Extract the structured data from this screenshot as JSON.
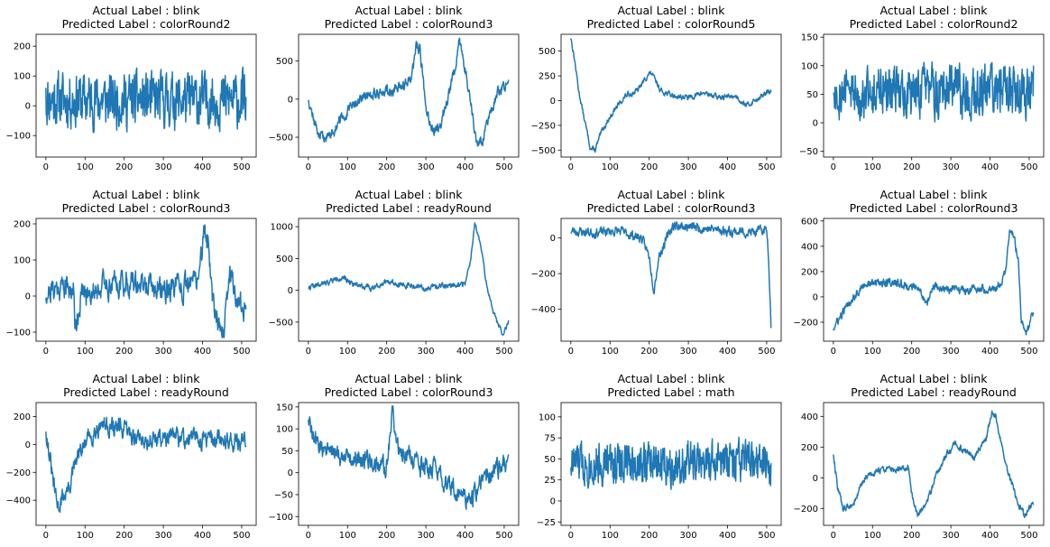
{
  "colors": {
    "series": "#1f77b4"
  },
  "chart_data": [
    {
      "type": "line",
      "title": "Actual Label : blink",
      "subtitle": "Predicted Label : colorRound2",
      "xlim": [
        -25,
        537
      ],
      "ylim": [
        -172,
        240
      ],
      "xticks": [
        0,
        100,
        200,
        300,
        400,
        500
      ],
      "yticks": [
        -100,
        0,
        100,
        200
      ],
      "shape": "noisy",
      "n": 512,
      "center": 20,
      "amp": 100,
      "seed": 11,
      "cmin": -145,
      "cmax": 235,
      "anchors": [
        [
          0,
          60
        ],
        [
          512,
          30
        ]
      ]
    },
    {
      "type": "line",
      "title": "Actual Label : blink",
      "subtitle": "Predicted Label : colorRound3",
      "xlim": [
        -25,
        537
      ],
      "ylim": [
        -760,
        850
      ],
      "xticks": [
        0,
        100,
        200,
        300,
        400,
        500
      ],
      "yticks": [
        -500,
        0,
        500
      ],
      "shape": "anchors",
      "n": 512,
      "noise": 60,
      "seed": 12,
      "cmin": -660,
      "cmax": 800,
      "anchors": [
        [
          0,
          20
        ],
        [
          15,
          -300
        ],
        [
          30,
          -500
        ],
        [
          50,
          -500
        ],
        [
          80,
          -300
        ],
        [
          120,
          -50
        ],
        [
          160,
          80
        ],
        [
          200,
          100
        ],
        [
          240,
          150
        ],
        [
          265,
          300
        ],
        [
          275,
          700
        ],
        [
          285,
          650
        ],
        [
          300,
          -100
        ],
        [
          320,
          -450
        ],
        [
          340,
          -300
        ],
        [
          370,
          300
        ],
        [
          385,
          780
        ],
        [
          400,
          400
        ],
        [
          420,
          -200
        ],
        [
          430,
          -600
        ],
        [
          445,
          -550
        ],
        [
          470,
          -100
        ],
        [
          490,
          150
        ],
        [
          512,
          200
        ]
      ]
    },
    {
      "type": "line",
      "title": "Actual Label : blink",
      "subtitle": "Predicted Label : colorRound5",
      "xlim": [
        -25,
        537
      ],
      "ylim": [
        -570,
        670
      ],
      "xticks": [
        0,
        100,
        200,
        300,
        400,
        500
      ],
      "yticks": [
        -500,
        -250,
        0,
        250,
        500
      ],
      "shape": "anchors",
      "n": 512,
      "noise": 22,
      "seed": 13,
      "cmin": -520,
      "cmax": 640,
      "anchors": [
        [
          0,
          640
        ],
        [
          10,
          400
        ],
        [
          20,
          100
        ],
        [
          35,
          -200
        ],
        [
          50,
          -480
        ],
        [
          62,
          -500
        ],
        [
          80,
          -300
        ],
        [
          110,
          -100
        ],
        [
          140,
          50
        ],
        [
          170,
          100
        ],
        [
          195,
          250
        ],
        [
          205,
          280
        ],
        [
          230,
          100
        ],
        [
          260,
          50
        ],
        [
          300,
          30
        ],
        [
          340,
          80
        ],
        [
          380,
          30
        ],
        [
          420,
          50
        ],
        [
          450,
          -50
        ],
        [
          480,
          30
        ],
        [
          512,
          100
        ]
      ]
    },
    {
      "type": "line",
      "title": "Actual Label : blink",
      "subtitle": "Predicted Label : colorRound2",
      "xlim": [
        -25,
        537
      ],
      "ylim": [
        -60,
        155
      ],
      "xticks": [
        0,
        100,
        200,
        300,
        400,
        500
      ],
      "yticks": [
        -50,
        0,
        50,
        100,
        150
      ],
      "shape": "noisy",
      "n": 512,
      "center": 55,
      "amp": 50,
      "seed": 14,
      "cmin": -50,
      "cmax": 148,
      "anchors": [
        [
          0,
          50
        ],
        [
          512,
          100
        ]
      ]
    },
    {
      "type": "line",
      "title": "Actual Label : blink",
      "subtitle": "Predicted Label : colorRound3",
      "xlim": [
        -25,
        537
      ],
      "ylim": [
        -125,
        215
      ],
      "xticks": [
        0,
        100,
        200,
        300,
        400,
        500
      ],
      "yticks": [
        -100,
        0,
        100,
        200
      ],
      "shape": "anchors",
      "n": 512,
      "noise": 28,
      "seed": 21,
      "cmin": -115,
      "cmax": 200,
      "anchors": [
        [
          0,
          10
        ],
        [
          40,
          30
        ],
        [
          70,
          20
        ],
        [
          75,
          -85
        ],
        [
          90,
          0
        ],
        [
          140,
          30
        ],
        [
          200,
          40
        ],
        [
          280,
          20
        ],
        [
          360,
          20
        ],
        [
          390,
          60
        ],
        [
          405,
          180
        ],
        [
          415,
          150
        ],
        [
          425,
          0
        ],
        [
          440,
          -60
        ],
        [
          455,
          -110
        ],
        [
          470,
          80
        ],
        [
          485,
          0
        ],
        [
          512,
          -50
        ]
      ]
    },
    {
      "type": "line",
      "title": "Actual Label : blink",
      "subtitle": "Predicted Label : readyRound",
      "xlim": [
        -25,
        537
      ],
      "ylim": [
        -800,
        1130
      ],
      "xticks": [
        0,
        100,
        200,
        300,
        400,
        500
      ],
      "yticks": [
        -500,
        0,
        500,
        1000
      ],
      "shape": "anchors",
      "n": 512,
      "noise": 35,
      "seed": 22,
      "cmin": -700,
      "cmax": 1060,
      "anchors": [
        [
          0,
          50
        ],
        [
          30,
          80
        ],
        [
          80,
          200
        ],
        [
          120,
          100
        ],
        [
          160,
          30
        ],
        [
          200,
          150
        ],
        [
          250,
          80
        ],
        [
          300,
          30
        ],
        [
          350,
          80
        ],
        [
          400,
          100
        ],
        [
          415,
          500
        ],
        [
          425,
          1050
        ],
        [
          440,
          700
        ],
        [
          455,
          100
        ],
        [
          470,
          -300
        ],
        [
          485,
          -550
        ],
        [
          498,
          -700
        ],
        [
          512,
          -450
        ]
      ]
    },
    {
      "type": "line",
      "title": "Actual Label : blink",
      "subtitle": "Predicted Label : colorRound3",
      "xlim": [
        -25,
        537
      ],
      "ylim": [
        -580,
        110
      ],
      "xticks": [
        0,
        100,
        200,
        300,
        400,
        500
      ],
      "yticks": [
        -400,
        -200,
        0
      ],
      "shape": "anchors",
      "n": 512,
      "noise": 22,
      "seed": 23,
      "cmin": -555,
      "cmax": 100,
      "anchors": [
        [
          0,
          40
        ],
        [
          60,
          30
        ],
        [
          120,
          40
        ],
        [
          180,
          0
        ],
        [
          200,
          -100
        ],
        [
          212,
          -290
        ],
        [
          225,
          -100
        ],
        [
          260,
          70
        ],
        [
          320,
          60
        ],
        [
          400,
          40
        ],
        [
          470,
          30
        ],
        [
          500,
          50
        ],
        [
          505,
          -100
        ],
        [
          508,
          -300
        ],
        [
          512,
          -550
        ]
      ]
    },
    {
      "type": "line",
      "title": "Actual Label : blink",
      "subtitle": "Predicted Label : colorRound3",
      "xlim": [
        -25,
        537
      ],
      "ylim": [
        -350,
        620
      ],
      "xticks": [
        0,
        100,
        200,
        300,
        400,
        500
      ],
      "yticks": [
        -200,
        0,
        200,
        400,
        600
      ],
      "shape": "anchors",
      "n": 512,
      "noise": 28,
      "seed": 24,
      "cmin": -320,
      "cmax": 580,
      "anchors": [
        [
          0,
          -250
        ],
        [
          20,
          -150
        ],
        [
          50,
          0
        ],
        [
          80,
          100
        ],
        [
          140,
          120
        ],
        [
          200,
          80
        ],
        [
          220,
          50
        ],
        [
          240,
          -50
        ],
        [
          255,
          80
        ],
        [
          300,
          50
        ],
        [
          360,
          60
        ],
        [
          420,
          80
        ],
        [
          440,
          200
        ],
        [
          450,
          550
        ],
        [
          462,
          450
        ],
        [
          472,
          300
        ],
        [
          480,
          -200
        ],
        [
          492,
          -300
        ],
        [
          512,
          -130
        ]
      ]
    },
    {
      "type": "line",
      "title": "Actual Label : blink",
      "subtitle": "Predicted Label : readyRound",
      "xlim": [
        -25,
        537
      ],
      "ylim": [
        -580,
        300
      ],
      "xticks": [
        0,
        100,
        200,
        300,
        400,
        500
      ],
      "yticks": [
        -400,
        -200,
        0,
        200
      ],
      "shape": "anchors",
      "n": 512,
      "noise": 55,
      "seed": 31,
      "cmin": -540,
      "cmax": 270,
      "anchors": [
        [
          0,
          120
        ],
        [
          10,
          -100
        ],
        [
          20,
          -300
        ],
        [
          30,
          -450
        ],
        [
          40,
          -400
        ],
        [
          60,
          -300
        ],
        [
          80,
          -100
        ],
        [
          110,
          50
        ],
        [
          140,
          150
        ],
        [
          200,
          100
        ],
        [
          250,
          30
        ],
        [
          300,
          50
        ],
        [
          400,
          40
        ],
        [
          450,
          30
        ],
        [
          512,
          20
        ]
      ]
    },
    {
      "type": "line",
      "title": "Actual Label : blink",
      "subtitle": "Predicted Label : colorRound3",
      "xlim": [
        -25,
        537
      ],
      "ylim": [
        -120,
        160
      ],
      "xticks": [
        0,
        100,
        200,
        300,
        400,
        500
      ],
      "yticks": [
        -100,
        -50,
        0,
        50,
        100,
        150
      ],
      "shape": "anchors",
      "n": 512,
      "noise": 18,
      "seed": 32,
      "cmin": -110,
      "cmax": 152,
      "anchors": [
        [
          0,
          130
        ],
        [
          10,
          80
        ],
        [
          30,
          60
        ],
        [
          80,
          40
        ],
        [
          150,
          30
        ],
        [
          200,
          10
        ],
        [
          215,
          150
        ],
        [
          225,
          60
        ],
        [
          280,
          20
        ],
        [
          330,
          0
        ],
        [
          380,
          -50
        ],
        [
          420,
          -60
        ],
        [
          440,
          -20
        ],
        [
          470,
          0
        ],
        [
          512,
          30
        ]
      ]
    },
    {
      "type": "line",
      "title": "Actual Label : blink",
      "subtitle": "Predicted Label : math",
      "xlim": [
        -25,
        537
      ],
      "ylim": [
        -29,
        117
      ],
      "xticks": [
        0,
        100,
        200,
        300,
        400,
        500
      ],
      "yticks": [
        -25,
        0,
        25,
        50,
        75,
        100
      ],
      "shape": "noisy",
      "n": 512,
      "center": 45,
      "amp": 28,
      "seed": 33,
      "cmin": -22,
      "cmax": 108,
      "anchors": [
        [
          0,
          40
        ],
        [
          512,
          45
        ]
      ]
    },
    {
      "type": "line",
      "title": "Actual Label : blink",
      "subtitle": "Predicted Label : readyRound",
      "xlim": [
        -25,
        537
      ],
      "ylim": [
        -310,
        490
      ],
      "xticks": [
        0,
        100,
        200,
        300,
        400,
        500
      ],
      "yticks": [
        -200,
        0,
        200,
        400
      ],
      "shape": "anchors",
      "n": 512,
      "noise": 18,
      "seed": 34,
      "cmin": -265,
      "cmax": 460,
      "anchors": [
        [
          0,
          160
        ],
        [
          10,
          -50
        ],
        [
          25,
          -200
        ],
        [
          50,
          -180
        ],
        [
          80,
          0
        ],
        [
          120,
          50
        ],
        [
          160,
          60
        ],
        [
          190,
          70
        ],
        [
          200,
          -100
        ],
        [
          215,
          -250
        ],
        [
          240,
          -150
        ],
        [
          260,
          0
        ],
        [
          290,
          150
        ],
        [
          310,
          220
        ],
        [
          330,
          180
        ],
        [
          360,
          140
        ],
        [
          390,
          250
        ],
        [
          405,
          440
        ],
        [
          415,
          400
        ],
        [
          430,
          200
        ],
        [
          450,
          0
        ],
        [
          470,
          -150
        ],
        [
          490,
          -250
        ],
        [
          500,
          -200
        ],
        [
          512,
          -170
        ]
      ]
    }
  ]
}
